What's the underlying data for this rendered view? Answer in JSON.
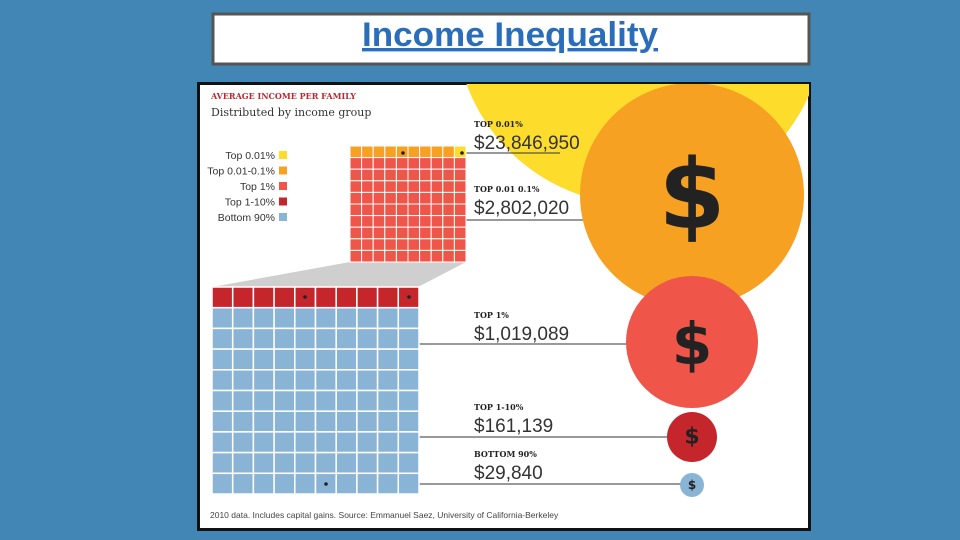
{
  "header": {
    "title": "Income Inequality"
  },
  "infographic": {
    "title": "AVERAGE INCOME PER FAMILY",
    "subtitle": "Distributed by income group",
    "legend": [
      "Top 0.01%",
      "Top 0.01-0.1%",
      "Top 1%",
      "Top 1-10%",
      "Bottom 90%"
    ],
    "groups": [
      {
        "label": "TOP 0.01%",
        "amount": "$23,846,950"
      },
      {
        "label": "TOP 0.01 0.1%",
        "amount": "$2,802,020"
      },
      {
        "label": "TOP 1%",
        "amount": "$1,019,089"
      },
      {
        "label": "TOP 1-10%",
        "amount": "$161,139"
      },
      {
        "label": "BOTTOM 90%",
        "amount": "$29,840"
      }
    ],
    "symbol": "$",
    "footnote": "2010 data. Includes capital gains. Source: Emmanuel Saez, University of California-Berkeley"
  }
}
